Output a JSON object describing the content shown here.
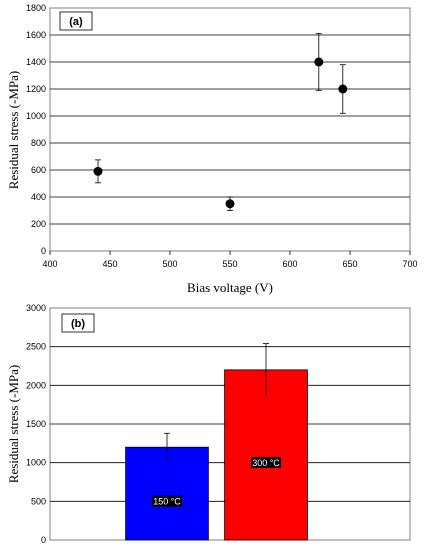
{
  "chart_data": [
    {
      "type": "scatter",
      "panel_label": "(a)",
      "xlabel": "Bias voltage (V)",
      "ylabel": "Residual stress (-MPa)",
      "xlim": [
        400,
        700
      ],
      "ylim": [
        0,
        1800
      ],
      "xticks": [
        "400",
        "450",
        "500",
        "550",
        "600",
        "650",
        "700"
      ],
      "yticks": [
        "0",
        "200",
        "400",
        "600",
        "800",
        "1000",
        "1200",
        "1400",
        "1600",
        "1800"
      ],
      "grid": "horizontal",
      "points": [
        {
          "x": 440,
          "y": 590,
          "err": 85
        },
        {
          "x": 550,
          "y": 350,
          "err": 50
        },
        {
          "x": 624,
          "y": 1400,
          "err": 210
        },
        {
          "x": 644,
          "y": 1200,
          "err": 180
        }
      ]
    },
    {
      "type": "bar",
      "panel_label": "(b)",
      "xlabel": "",
      "ylabel": "Residual stress (-MPa)",
      "ylim": [
        0,
        3000
      ],
      "yticks": [
        "0",
        "500",
        "1000",
        "1500",
        "2000",
        "2500",
        "3000"
      ],
      "grid": "horizontal",
      "categories": [
        "150 °C",
        "300 °C"
      ],
      "values": [
        1200,
        2200
      ],
      "errors": [
        180,
        340
      ],
      "colors": [
        "#0000ff",
        "#ff0000"
      ]
    }
  ]
}
